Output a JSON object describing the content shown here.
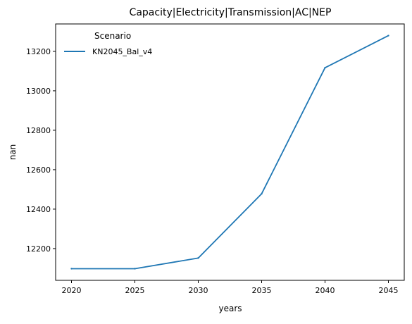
{
  "chart_data": {
    "type": "line",
    "title": "Capacity|Electricity|Transmission|AC|NEP",
    "xlabel": "years",
    "ylabel": "nan",
    "x": [
      2020,
      2025,
      2030,
      2035,
      2040,
      2045
    ],
    "xticks": [
      2020,
      2025,
      2030,
      2035,
      2040,
      2045
    ],
    "yticks": [
      12200,
      12400,
      12600,
      12800,
      13000,
      13200
    ],
    "xlim": [
      2018.75,
      2046.25
    ],
    "ylim": [
      12039,
      13339
    ],
    "grid": false,
    "legend": {
      "title": "Scenario",
      "placement": "top-left"
    },
    "series": [
      {
        "name": "KN2045_Bal_v4",
        "color": "#1f77b4",
        "values": [
          12098,
          12098,
          12152,
          12478,
          13117,
          13280
        ]
      }
    ]
  }
}
